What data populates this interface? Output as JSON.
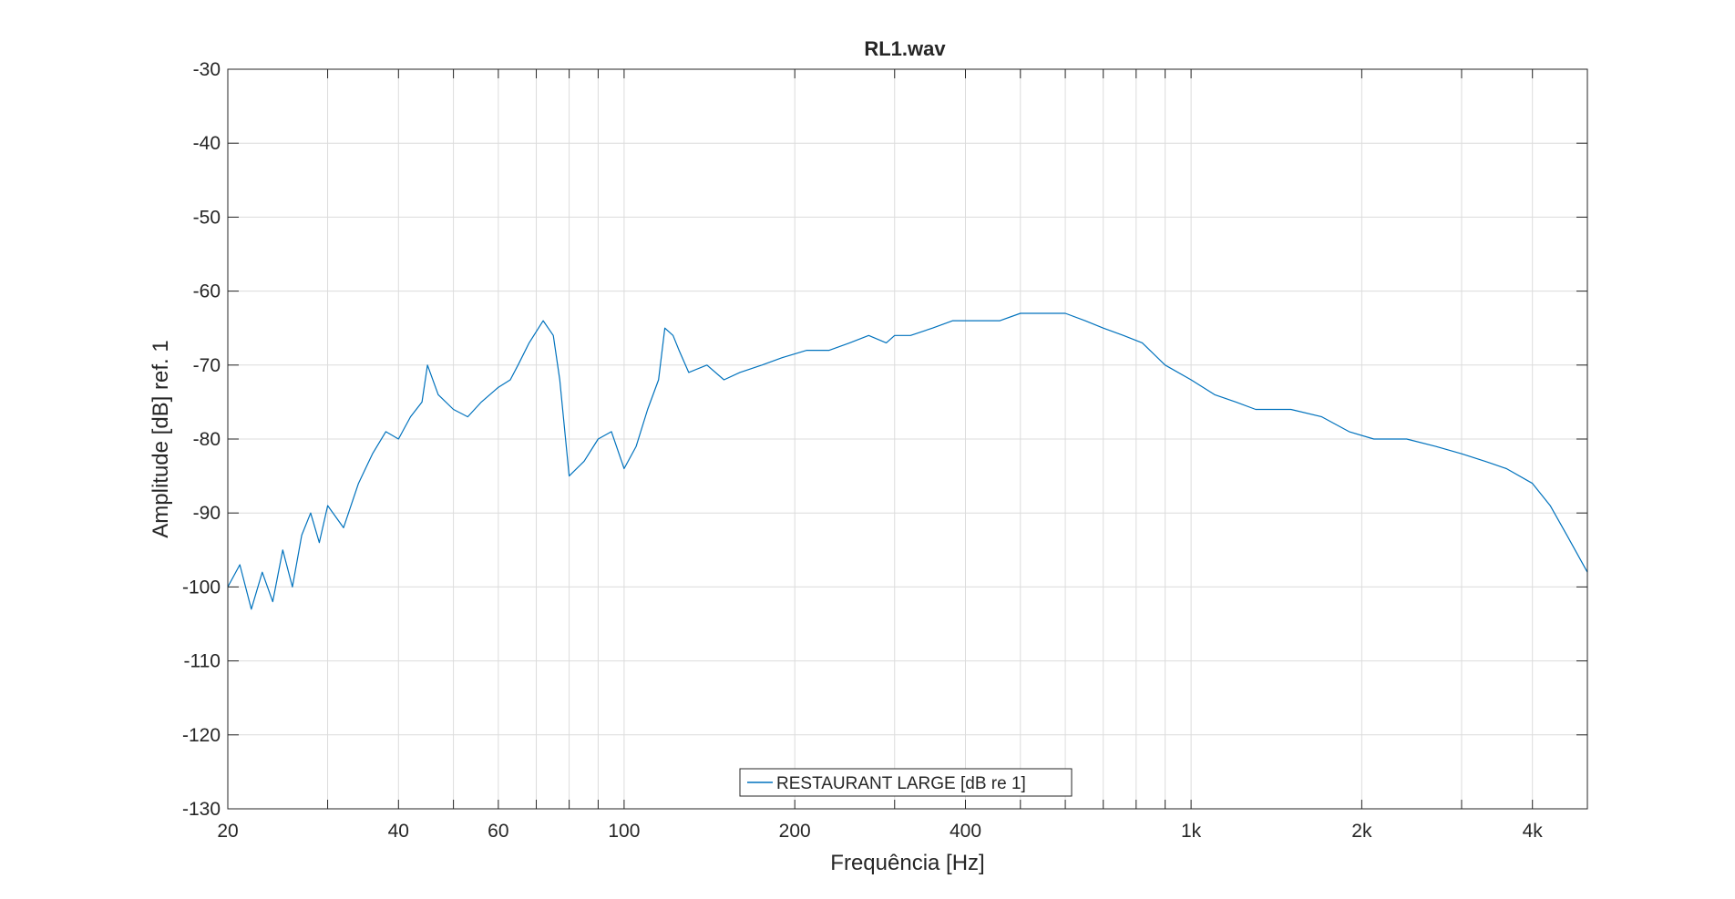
{
  "figure": {
    "title": "RL1.wav",
    "xlabel": "Frequência [Hz]",
    "ylabel": "Amplitude [dB] ref. 1",
    "legend": "RESTAURANT LARGE [dB re 1]"
  },
  "colors": {
    "series": "#0072BD",
    "grid": "#dcdcdc",
    "axis": "#262626"
  },
  "chart_data": {
    "type": "line",
    "title": "RL1.wav",
    "xlabel": "Frequência [Hz]",
    "ylabel": "Amplitude [dB] ref. 1",
    "xscale": "log",
    "xlim": [
      20,
      5000
    ],
    "ylim": [
      -130,
      -30
    ],
    "grid": true,
    "legend_position": "bottom-center",
    "xticks": [
      {
        "value": 20,
        "label": "20"
      },
      {
        "value": 40,
        "label": "40"
      },
      {
        "value": 60,
        "label": "60"
      },
      {
        "value": 100,
        "label": "100"
      },
      {
        "value": 200,
        "label": "200"
      },
      {
        "value": 400,
        "label": "400"
      },
      {
        "value": 1000,
        "label": "1k"
      },
      {
        "value": 2000,
        "label": "2k"
      },
      {
        "value": 4000,
        "label": "4k"
      }
    ],
    "yticks": [
      -30,
      -40,
      -50,
      -60,
      -70,
      -80,
      -90,
      -100,
      -110,
      -120,
      -130
    ],
    "series": [
      {
        "name": "RESTAURANT LARGE [dB re 1]",
        "x": [
          20,
          21,
          22,
          23,
          24,
          25,
          26,
          27,
          28,
          29,
          30,
          32,
          34,
          36,
          38,
          40,
          42,
          44,
          45,
          47,
          50,
          53,
          56,
          60,
          63,
          65,
          68,
          72,
          75,
          77,
          80,
          85,
          90,
          95,
          100,
          105,
          110,
          115,
          118,
          122,
          125,
          130,
          140,
          150,
          160,
          175,
          190,
          210,
          230,
          250,
          270,
          290,
          300,
          320,
          350,
          380,
          420,
          460,
          500,
          550,
          600,
          650,
          700,
          760,
          820,
          900,
          1000,
          1100,
          1200,
          1300,
          1500,
          1700,
          1900,
          2100,
          2400,
          2700,
          3000,
          3300,
          3600,
          4000,
          4300,
          4600,
          5000
        ],
        "y": [
          -100,
          -97,
          -103,
          -98,
          -102,
          -95,
          -100,
          -93,
          -90,
          -94,
          -89,
          -92,
          -86,
          -82,
          -79,
          -80,
          -77,
          -75,
          -70,
          -74,
          -76,
          -77,
          -75,
          -73,
          -72,
          -70,
          -67,
          -64,
          -66,
          -72,
          -85,
          -83,
          -80,
          -79,
          -84,
          -81,
          -76,
          -72,
          -65,
          -66,
          -68,
          -71,
          -70,
          -72,
          -71,
          -70,
          -69,
          -68,
          -68,
          -67,
          -66,
          -67,
          -66,
          -66,
          -65,
          -64,
          -64,
          -64,
          -63,
          -63,
          -63,
          -64,
          -65,
          -66,
          -67,
          -70,
          -72,
          -74,
          -75,
          -76,
          -76,
          -77,
          -79,
          -80,
          -80,
          -81,
          -82,
          -83,
          -84,
          -86,
          -89,
          -93,
          -98
        ]
      }
    ]
  }
}
